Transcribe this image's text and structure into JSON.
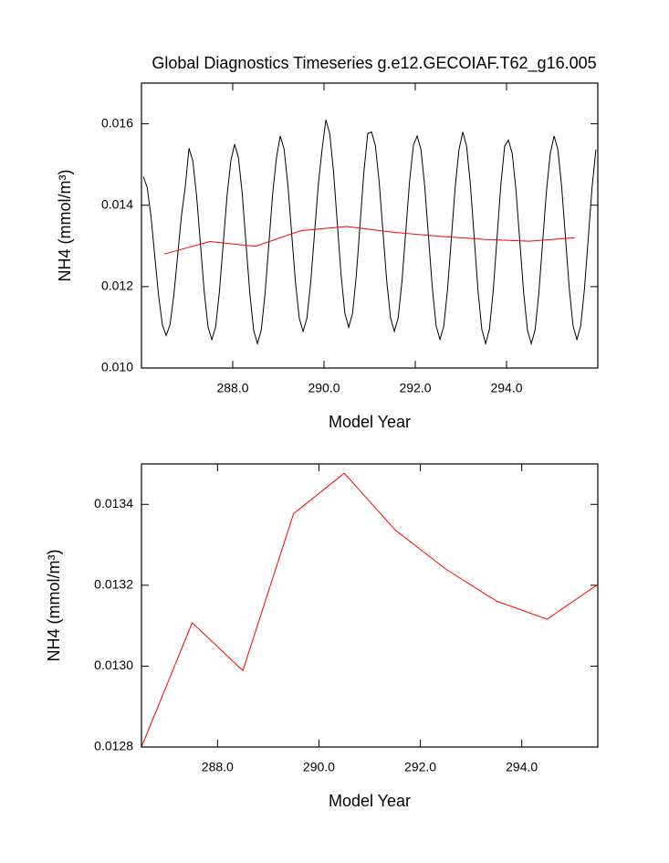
{
  "chart_data": [
    {
      "type": "line",
      "title": "Global Diagnostics Timeseries g.e12.GECOIAF.T62_g16.005",
      "xlabel": "Model Year",
      "ylabel": "NH4 (mmol/m³)",
      "xlim": [
        286,
        296
      ],
      "ylim": [
        0.01,
        0.017
      ],
      "xticks": [
        {
          "value": 288,
          "label": "288.0"
        },
        {
          "value": 290,
          "label": "290.0"
        },
        {
          "value": 292,
          "label": "292.0"
        },
        {
          "value": 294,
          "label": "294.0"
        }
      ],
      "yticks": [
        {
          "value": 0.01,
          "label": "0.010"
        },
        0.012,
        0.014,
        0.016
      ],
      "series": [
        {
          "color": "#000000",
          "x": [
            286.0417,
            286.125,
            286.2083,
            286.2917,
            286.375,
            286.4583,
            286.5417,
            286.625,
            286.7083,
            286.7917,
            286.875,
            286.9583,
            287.0417,
            287.125,
            287.2083,
            287.2917,
            287.375,
            287.4583,
            287.5417,
            287.625,
            287.7083,
            287.7917,
            287.875,
            287.9583,
            288.0417,
            288.125,
            288.2083,
            288.2917,
            288.375,
            288.4583,
            288.5417,
            288.625,
            288.7083,
            288.7917,
            288.875,
            288.9583,
            289.0417,
            289.125,
            289.2083,
            289.2917,
            289.375,
            289.4583,
            289.5417,
            289.625,
            289.7083,
            289.7917,
            289.875,
            289.9583,
            290.0417,
            290.125,
            290.2083,
            290.2917,
            290.375,
            290.4583,
            290.5417,
            290.625,
            290.7083,
            290.7917,
            290.875,
            290.9583,
            291.0417,
            291.125,
            291.2083,
            291.2917,
            291.375,
            291.4583,
            291.5417,
            291.625,
            291.7083,
            291.7917,
            291.875,
            291.9583,
            292.0417,
            292.125,
            292.2083,
            292.2917,
            292.375,
            292.4583,
            292.5417,
            292.625,
            292.7083,
            292.7917,
            292.875,
            292.9583,
            293.0417,
            293.125,
            293.2083,
            293.2917,
            293.375,
            293.4583,
            293.5417,
            293.625,
            293.7083,
            293.7917,
            293.875,
            293.9583,
            294.0417,
            294.125,
            294.2083,
            294.2917,
            294.375,
            294.4583,
            294.5417,
            294.625,
            294.7083,
            294.7917,
            294.875,
            294.9583,
            295.0417,
            295.125,
            295.2083,
            295.2917,
            295.375,
            295.4583,
            295.5417,
            295.625,
            295.7083,
            295.7917,
            295.875,
            295.9583
          ],
          "values": [
            0.0147,
            0.01444,
            0.01373,
            0.01275,
            0.01178,
            0.01106,
            0.0108,
            0.01106,
            0.01178,
            0.01275,
            0.01373,
            0.01444,
            0.0154,
            0.01509,
            0.01423,
            0.01305,
            0.01188,
            0.01101,
            0.0107,
            0.01101,
            0.01188,
            0.01305,
            0.01423,
            0.01509,
            0.0155,
            0.01517,
            0.01428,
            0.01305,
            0.01183,
            0.01093,
            0.0106,
            0.01093,
            0.01183,
            0.01305,
            0.01428,
            0.01517,
            0.0157,
            0.01538,
            0.0145,
            0.0133,
            0.0121,
            0.01122,
            0.0109,
            0.01122,
            0.0121,
            0.0133,
            0.0145,
            0.01538,
            0.0161,
            0.01576,
            0.01483,
            0.01355,
            0.01228,
            0.01134,
            0.011,
            0.01134,
            0.01228,
            0.01355,
            0.01483,
            0.01576,
            0.0158,
            0.01547,
            0.01458,
            0.01335,
            0.01213,
            0.01123,
            0.0109,
            0.01123,
            0.01213,
            0.01335,
            0.01458,
            0.01547,
            0.0157,
            0.01537,
            0.01445,
            0.0132,
            0.01195,
            0.01103,
            0.0107,
            0.01103,
            0.01195,
            0.0132,
            0.01445,
            0.01537,
            0.0158,
            0.01545,
            0.0145,
            0.0132,
            0.0119,
            0.01095,
            0.0106,
            0.01095,
            0.0119,
            0.0132,
            0.0145,
            0.01545,
            0.0156,
            0.01527,
            0.01435,
            0.0131,
            0.01185,
            0.01093,
            0.0106,
            0.01093,
            0.01185,
            0.0131,
            0.01435,
            0.01527,
            0.0157,
            0.01537,
            0.01445,
            0.0132,
            0.01195,
            0.01103,
            0.0107,
            0.01103,
            0.01195,
            0.0132,
            0.01445,
            0.01537
          ]
        },
        {
          "color": "#ff0000",
          "x": [
            286.5,
            287.5,
            288.5,
            289.5,
            290.5,
            291.5,
            292.5,
            293.5,
            294.5,
            295.5
          ],
          "values": [
            0.0128,
            0.013107,
            0.012989,
            0.013377,
            0.013477,
            0.013337,
            0.01324,
            0.013161,
            0.013116,
            0.013202
          ]
        }
      ]
    },
    {
      "type": "line",
      "xlabel": "Model Year",
      "ylabel": "NH4 (mmol/m³)",
      "xlim": [
        286.5,
        295.5
      ],
      "ylim": [
        0.0128,
        0.0135
      ],
      "xticks": [
        {
          "value": 288,
          "label": "288.0"
        },
        {
          "value": 290,
          "label": "290.0"
        },
        {
          "value": 292,
          "label": "292.0"
        },
        {
          "value": 294,
          "label": "294.0"
        }
      ],
      "yticks": [
        0.0128,
        {
          "value": 0.013,
          "label": "0.0130"
        },
        0.0132,
        0.0134
      ],
      "color": "#ff0000",
      "x": [
        286.5,
        287.5,
        288.5,
        289.5,
        290.5,
        291.5,
        292.5,
        293.5,
        294.5,
        295.5
      ],
      "values": [
        0.0128,
        0.013107,
        0.012989,
        0.013377,
        0.013477,
        0.013337,
        0.01324,
        0.013161,
        0.013116,
        0.013202
      ]
    }
  ]
}
